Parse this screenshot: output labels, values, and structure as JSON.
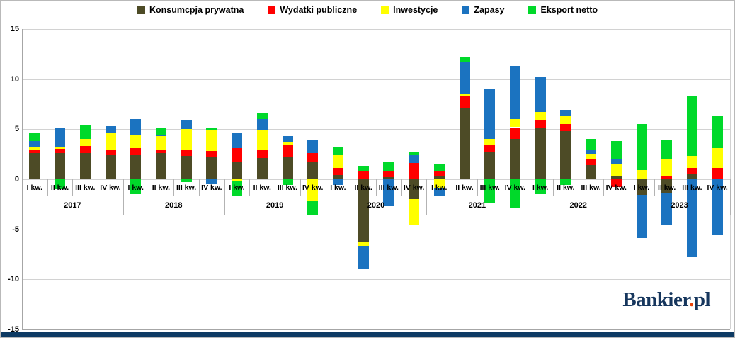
{
  "colors": {
    "konsumpcja": "#4d4b26",
    "wydatki": "#ff0000",
    "inwestycje": "#ffff00",
    "zapasy": "#1b73c0",
    "eksport": "#00d92a",
    "navy_bar": "#0d3a63",
    "logo_navy": "#16365d",
    "logo_dot": "#e8430a"
  },
  "legend": [
    {
      "label": "Konsumcpja prywatna",
      "color": "#4d4b26"
    },
    {
      "label": "Wydatki publiczne",
      "color": "#ff0000"
    },
    {
      "label": "Inwestycje",
      "color": "#ffff00"
    },
    {
      "label": "Zapasy",
      "color": "#1b73c0"
    },
    {
      "label": "Eksport netto",
      "color": "#00d92a"
    }
  ],
  "logo": {
    "main": "Bankier",
    "dot": ".",
    "suffix": "pl"
  },
  "chart_data": {
    "type": "bar",
    "subtype": "stacked",
    "title": "",
    "xlabel": "",
    "ylabel": "",
    "ylim": [
      -15,
      15
    ],
    "yticks": [
      15,
      10,
      5,
      0,
      -5,
      -10,
      -15
    ],
    "grid": true,
    "legend_position": "top",
    "years": [
      "2017",
      "2018",
      "2019",
      "2020",
      "2021",
      "2022",
      "2023"
    ],
    "quarter_labels": [
      "I kw.",
      "II kw.",
      "III kw.",
      "IV kw.",
      "I kw.",
      "II kw.",
      "III kw.",
      "IV kw.",
      "I kw.",
      "II kw.",
      "III kw.",
      "IV kw.",
      "I kw.",
      "II kw.",
      "III kw.",
      "IV kw.",
      "I kw.",
      "II kw.",
      "III kw.",
      "IV kw.",
      "I kw.",
      "II kw.",
      "III kw.",
      "IV kw.",
      "I kw.",
      "II kw.",
      "III kw.",
      "IV kw."
    ],
    "categories": [
      "I kw. 2017",
      "II kw. 2017",
      "III kw. 2017",
      "IV kw. 2017",
      "I kw. 2018",
      "II kw. 2018",
      "III kw. 2018",
      "IV kw. 2018",
      "I kw. 2019",
      "II kw. 2019",
      "III kw. 2019",
      "IV kw. 2019",
      "I kw. 2020",
      "II kw. 2020",
      "III kw. 2020",
      "IV kw. 2020",
      "I kw. 2021",
      "II kw. 2021",
      "III kw. 2021",
      "IV kw. 2021",
      "I kw. 2022",
      "II kw. 2022",
      "III kw. 2022",
      "IV kw. 2022",
      "I kw. 2023",
      "II kw. 2023",
      "III kw. 2023",
      "IV kw. 2023"
    ],
    "series": [
      {
        "name": "Konsumcpja prywatna",
        "color": "#4d4b26",
        "values": [
          2.65,
          2.6,
          2.65,
          2.4,
          2.4,
          2.6,
          2.3,
          2.2,
          1.7,
          2.1,
          2.2,
          1.7,
          0.45,
          -6.3,
          0.2,
          -2.0,
          0.25,
          7.15,
          2.7,
          4.0,
          5.1,
          4.8,
          1.4,
          0.35,
          -1.55,
          -1.35,
          0.5,
          0
        ]
      },
      {
        "name": "Wydatki publiczne",
        "color": "#ff0000",
        "values": [
          0.3,
          0.45,
          0.65,
          0.6,
          0.7,
          0.4,
          0.7,
          0.6,
          1.4,
          0.9,
          1.3,
          0.9,
          0.65,
          0.8,
          0.6,
          1.6,
          0.55,
          1.2,
          0.8,
          1.2,
          0.8,
          0.7,
          0.65,
          -0.8,
          0,
          0.3,
          0.65,
          1.1
        ]
      },
      {
        "name": "Inwestycje",
        "color": "#ffff00",
        "values": [
          0.2,
          0.2,
          0.7,
          1.65,
          1.35,
          1.3,
          2.0,
          2.1,
          -0.15,
          1.9,
          0.2,
          -2.1,
          1.3,
          -0.35,
          0,
          -2.5,
          -0.9,
          0.2,
          0.5,
          0.8,
          0.85,
          0.9,
          0.4,
          1.2,
          0.9,
          1.65,
          1.2,
          2.0
        ]
      },
      {
        "name": "Zapasy",
        "color": "#1b73c0",
        "values": [
          0.7,
          1.9,
          0,
          0.65,
          1.55,
          0.15,
          0.85,
          -0.45,
          1.55,
          1.1,
          0.6,
          1.3,
          -0.55,
          -2.35,
          -2.7,
          0.8,
          -0.7,
          3.1,
          5.0,
          5.35,
          3.5,
          0.55,
          0.5,
          0.4,
          -4.35,
          -3.15,
          -7.8,
          -5.5
        ]
      },
      {
        "name": "Eksport netto",
        "color": "#00d92a",
        "values": [
          0.75,
          -1.0,
          1.35,
          0,
          -1.5,
          0.75,
          -0.3,
          0.2,
          -1.45,
          0.55,
          -0.6,
          -1.5,
          0.75,
          0.55,
          0.9,
          0.3,
          0.75,
          0.55,
          -2.3,
          -2.8,
          -1.5,
          -0.6,
          1.1,
          1.85,
          4.65,
          2.0,
          5.95,
          3.25
        ]
      }
    ]
  }
}
